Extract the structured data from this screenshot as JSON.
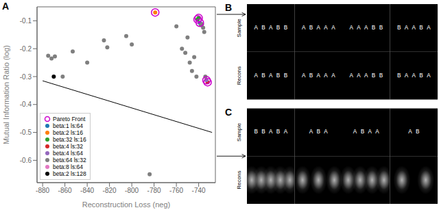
{
  "chart_data": [
    {
      "type": "scatter",
      "panel_label": "A",
      "xlabel": "Reconstruction Loss (neg)",
      "ylabel": "Mutual Information Ratio (log)",
      "xlim": [
        -885,
        -725
      ],
      "ylim": [
        -0.68,
        -0.05
      ],
      "xticks": [
        -880,
        -860,
        -840,
        -820,
        -800,
        -780,
        -760,
        -740
      ],
      "yticks": [
        -0.1,
        -0.2,
        -0.3,
        -0.4,
        -0.5,
        -0.6
      ],
      "legend": "lower left",
      "series": [
        {
          "name": "Pareto Front",
          "color": "#cc00cc",
          "marker": "open_circle",
          "x": [
            -779,
            -741,
            -740,
            -739,
            -733,
            -732
          ],
          "values": [
            -0.07,
            -0.095,
            -0.09,
            -0.107,
            -0.313,
            -0.32
          ]
        },
        {
          "name": "beta:1 ls:64",
          "color": "#1f77b4",
          "marker": "circle",
          "x": [
            -739
          ],
          "values": [
            -0.107
          ]
        },
        {
          "name": "beta:2 ls:16",
          "color": "#ff7f0e",
          "marker": "circle",
          "x": [
            -779
          ],
          "values": [
            -0.07
          ]
        },
        {
          "name": "beta:32 ls:16",
          "color": "#2ca02c",
          "marker": "circle",
          "x": [
            -741,
            -740
          ],
          "values": [
            -0.095,
            -0.09
          ]
        },
        {
          "name": "beta:4 ls:32",
          "color": "#d62728",
          "marker": "circle",
          "x": [
            -732
          ],
          "values": [
            -0.32
          ]
        },
        {
          "name": "beta:4 ls:64",
          "color": "#9467bd",
          "marker": "circle",
          "x": [
            -733
          ],
          "values": [
            -0.313
          ]
        },
        {
          "name": "beta:64 ls:32",
          "color": "#7f7f7f",
          "marker": "circle",
          "x": [
            -875,
            -872,
            -869,
            -862,
            -853,
            -840,
            -825,
            -822,
            -805,
            -800,
            -784,
            -760,
            -755,
            -752,
            -750,
            -748,
            -746,
            -744,
            -742,
            -738,
            -737,
            -736,
            -735,
            -734
          ],
          "values": [
            -0.225,
            -0.235,
            -0.228,
            -0.3,
            -0.21,
            -0.25,
            -0.17,
            -0.195,
            -0.155,
            -0.185,
            -0.65,
            -0.12,
            -0.2,
            -0.215,
            -0.16,
            -0.25,
            -0.28,
            -0.23,
            -0.3,
            -0.115,
            -0.112,
            -0.125,
            -0.14,
            -0.3
          ]
        },
        {
          "name": "beta:8 ls:64",
          "color": "#e377c2",
          "marker": "circle",
          "x": [],
          "values": []
        },
        {
          "name": "beta:2 ls:128",
          "color": "#000000",
          "marker": "circle",
          "x": [
            -870
          ],
          "values": [
            -0.3
          ]
        },
        {
          "type": "line",
          "color": "#000000",
          "x": [
            -880,
            -728
          ],
          "values": [
            -0.315,
            -0.5
          ]
        }
      ]
    },
    {
      "type": "image_grid",
      "panel_label": "B",
      "row_labels": [
        "Sample",
        "Recons"
      ],
      "rows": [
        [
          "A B A B B",
          "A B A A A",
          "A A A B B",
          "B A A B A"
        ],
        [
          "A B A B B",
          "A B A A A",
          "A A A B B",
          "B A A B A"
        ]
      ]
    },
    {
      "type": "image_grid",
      "panel_label": "C",
      "row_labels": [
        "Sample",
        "Recons"
      ],
      "rows": [
        [
          "B B A B A",
          "A B A",
          "A B A A",
          "A B"
        ]
      ],
      "blob_counts": [
        5,
        3,
        4,
        2
      ]
    }
  ]
}
